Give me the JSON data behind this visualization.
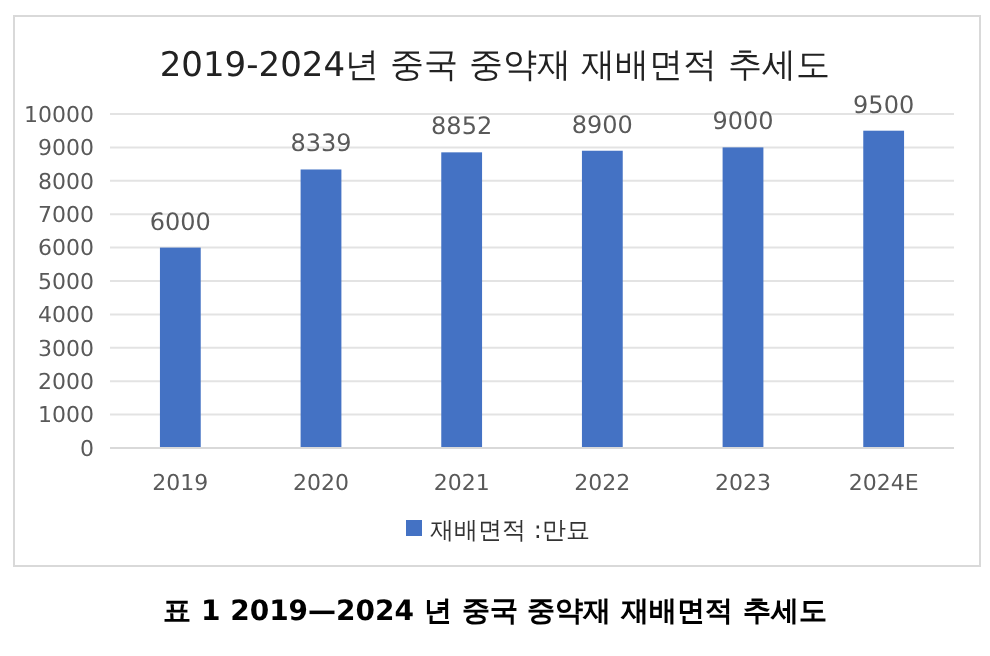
{
  "chart_data": {
    "type": "bar",
    "title": "2019-2024년 중국 중약재 재배면적 추세도",
    "categories": [
      "2019",
      "2020",
      "2021",
      "2022",
      "2023",
      "2024E"
    ],
    "series": [
      {
        "name": "재배면적 :만묘",
        "color": "#4472c4",
        "values": [
          6000,
          8339,
          8852,
          8900,
          9000,
          9500
        ]
      }
    ],
    "ylim": [
      0,
      10000
    ],
    "yticks": [
      0,
      1000,
      2000,
      3000,
      4000,
      5000,
      6000,
      7000,
      8000,
      9000,
      10000
    ],
    "grid": "y",
    "legend": "bottom",
    "data_labels": true,
    "annotations": [
      "표 1 2019—2024 년 중국 중약재 재배면적 추세도"
    ]
  }
}
